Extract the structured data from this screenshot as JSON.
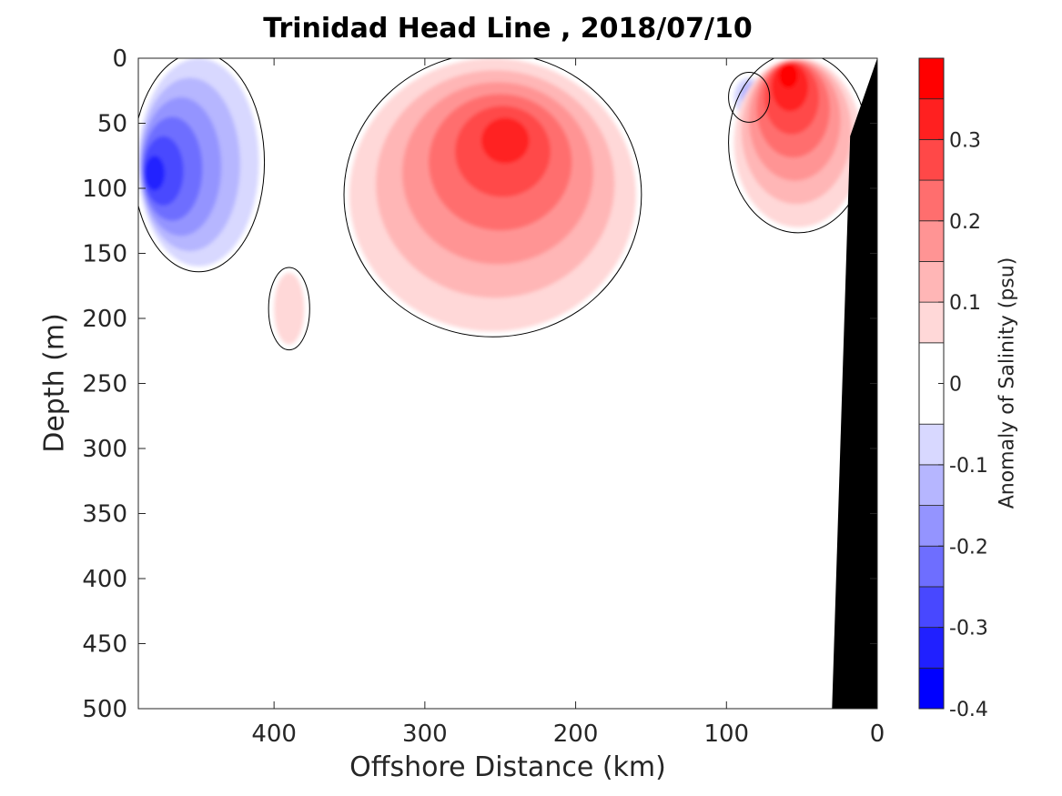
{
  "chart_data": {
    "type": "heatmap",
    "title": "Trinidad Head Line , 2018/07/10",
    "xlabel": "Offshore Distance (km)",
    "ylabel": "Depth (m)",
    "colorbar_label": "Anomaly of Salinity (psu)",
    "xlim": [
      490,
      0
    ],
    "ylim": [
      0,
      500
    ],
    "x_reversed": true,
    "y_reversed": true,
    "x_ticks": [
      "400",
      "300",
      "200",
      "100",
      "0"
    ],
    "x_tick_values": [
      400,
      300,
      200,
      100,
      0
    ],
    "y_ticks": [
      "0",
      "50",
      "100",
      "150",
      "200",
      "250",
      "300",
      "350",
      "400",
      "450",
      "500"
    ],
    "y_tick_values": [
      0,
      50,
      100,
      150,
      200,
      250,
      300,
      350,
      400,
      450,
      500
    ],
    "colorbar": {
      "range": [
        -0.4,
        0.4
      ],
      "tick_labels": [
        "0.3",
        "0.2",
        "0.1",
        "0",
        "-0.1",
        "-0.2",
        "-0.3",
        "-0.4"
      ],
      "tick_values": [
        0.3,
        0.2,
        0.1,
        0,
        -0.1,
        -0.2,
        -0.3,
        -0.4
      ],
      "levels": [
        {
          "min": -0.4,
          "max": -0.35,
          "color": "#0000ff"
        },
        {
          "min": -0.35,
          "max": -0.3,
          "color": "#2020ff"
        },
        {
          "min": -0.3,
          "max": -0.25,
          "color": "#4848ff"
        },
        {
          "min": -0.25,
          "max": -0.2,
          "color": "#6e6eff"
        },
        {
          "min": -0.2,
          "max": -0.15,
          "color": "#9494ff"
        },
        {
          "min": -0.15,
          "max": -0.1,
          "color": "#b6b6ff"
        },
        {
          "min": -0.1,
          "max": -0.05,
          "color": "#d8d8ff"
        },
        {
          "min": -0.05,
          "max": 0.05,
          "color": "#ffffff"
        },
        {
          "min": 0.05,
          "max": 0.1,
          "color": "#ffd8d8"
        },
        {
          "min": 0.1,
          "max": 0.15,
          "color": "#ffb6b6"
        },
        {
          "min": 0.15,
          "max": 0.2,
          "color": "#ff9494"
        },
        {
          "min": 0.2,
          "max": 0.25,
          "color": "#ff6e6e"
        },
        {
          "min": 0.25,
          "max": 0.3,
          "color": "#ff4848"
        },
        {
          "min": 0.3,
          "max": 0.35,
          "color": "#ff2020"
        },
        {
          "min": 0.35,
          "max": 0.4,
          "color": "#ff0000"
        }
      ]
    },
    "features": [
      {
        "name": "negative-anomaly-offshore-west",
        "sign": "negative",
        "peak": -0.3,
        "x_range": [
          490,
          410
        ],
        "depth_range": [
          0,
          160
        ],
        "peak_at": [
          485,
          90
        ]
      },
      {
        "name": "negative-anomaly-nearshore-eddy",
        "sign": "negative",
        "peak": -0.15,
        "x_range": [
          95,
          75
        ],
        "depth_range": [
          15,
          45
        ],
        "peak_at": [
          82,
          25
        ]
      },
      {
        "name": "positive-anomaly-core",
        "sign": "positive",
        "peak": 0.3,
        "x_range": [
          350,
          160
        ],
        "depth_range": [
          0,
          210
        ],
        "peak_at": [
          245,
          55
        ]
      },
      {
        "name": "positive-anomaly-nearshore",
        "sign": "positive",
        "peak": 0.35,
        "x_range": [
          95,
          10
        ],
        "depth_range": [
          0,
          130
        ],
        "peak_at": [
          60,
          5
        ]
      },
      {
        "name": "positive-anomaly-isolated",
        "sign": "positive",
        "peak": 0.05,
        "x_range": [
          400,
          380
        ],
        "depth_range": [
          165,
          220
        ],
        "peak_at": [
          390,
          190
        ]
      }
    ],
    "bathymetry": {
      "color": "#000000",
      "shelf_edge_km": [
        [
          0,
          0
        ],
        [
          0,
          500
        ],
        [
          30,
          500
        ],
        [
          18,
          60
        ],
        [
          0,
          0
        ]
      ]
    },
    "grid": false
  }
}
